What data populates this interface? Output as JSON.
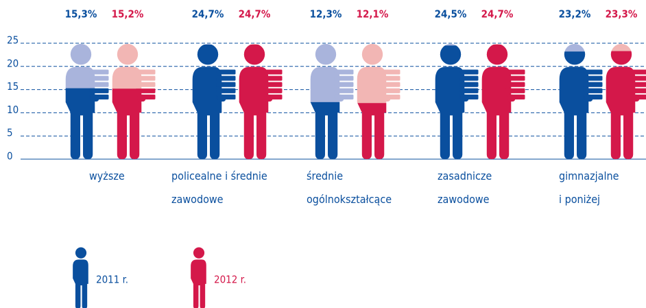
{
  "chart_data": {
    "type": "pictogram",
    "categories": [
      "wyższe",
      "policealne i średnie\nzawodowe",
      "średnie\nogólnokształcące",
      "zasadnicze\nzawodowe",
      "gimnazjalne\ni poniżej"
    ],
    "series": [
      {
        "name": "2011 r.",
        "color": "#0a4f9e",
        "light_color": "#a9b4dc",
        "values": [
          15.3,
          24.7,
          12.3,
          24.5,
          23.2
        ],
        "value_labels": [
          "15,3%",
          "24,7%",
          "12,3%",
          "24,5%",
          "23,2%"
        ]
      },
      {
        "name": "2012 r.",
        "color": "#d4184a",
        "light_color": "#f2b6b4",
        "values": [
          15.2,
          24.7,
          12.1,
          24.7,
          23.3
        ],
        "value_labels": [
          "15,2%",
          "24,7%",
          "12,1%",
          "24,7%",
          "23,3%"
        ]
      }
    ],
    "ylim": [
      0,
      25
    ],
    "yticks": [
      0,
      5,
      10,
      15,
      20,
      25
    ],
    "grid": true
  }
}
